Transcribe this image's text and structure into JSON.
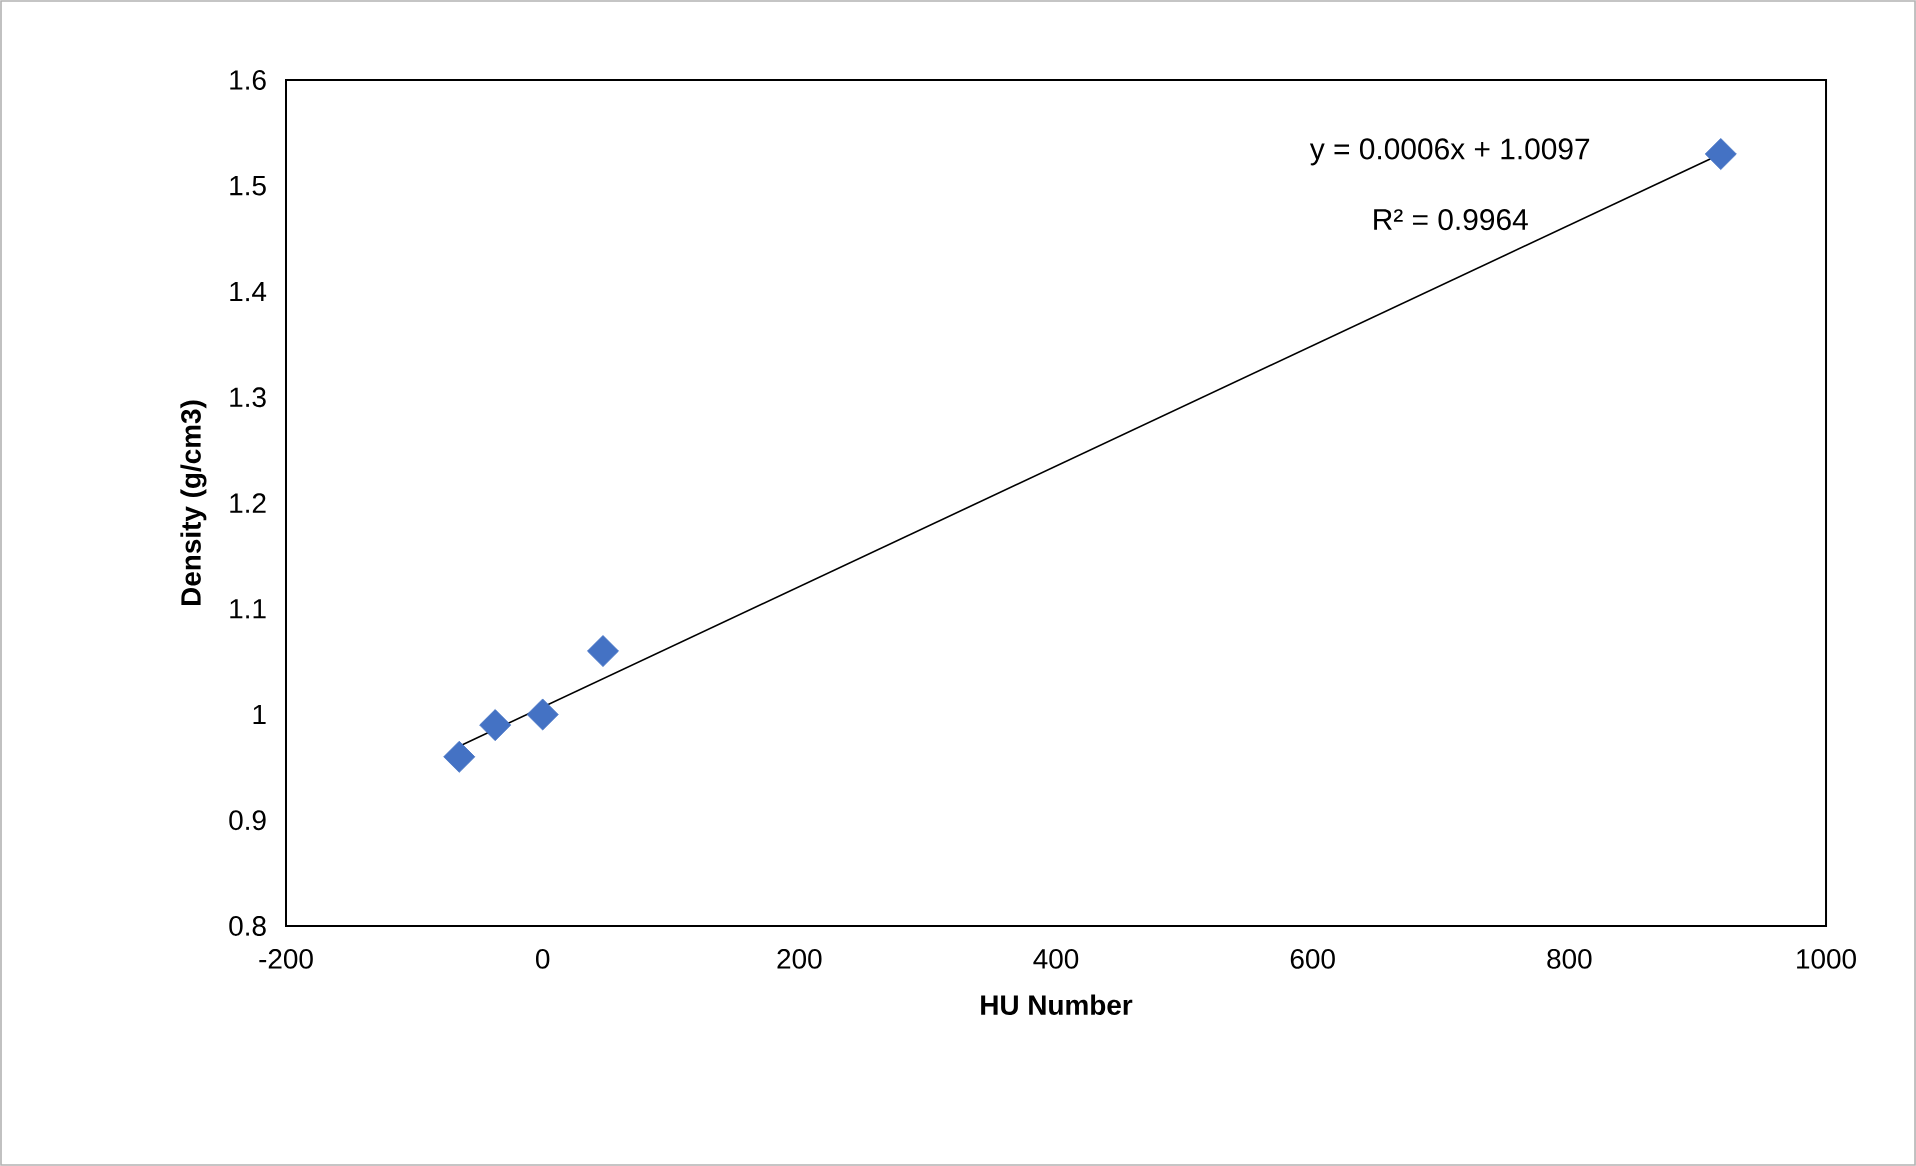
{
  "chart_data": {
    "type": "scatter",
    "xlabel": "HU Number",
    "ylabel": "Density (g/cm3)",
    "xlim": [
      -200,
      1000
    ],
    "xticks": [
      -200,
      0,
      200,
      400,
      600,
      800,
      1000
    ],
    "ylim": [
      0.8,
      1.6
    ],
    "yticks": [
      0.8,
      0.9,
      1,
      1.1,
      1.2,
      1.3,
      1.4,
      1.5,
      1.6
    ],
    "grid": false,
    "marker": "diamond",
    "series": [
      {
        "color": "#4472c4",
        "x": [
          -65,
          -37,
          0,
          47,
          918
        ],
        "values": [
          0.96,
          0.99,
          1.0,
          1.06,
          1.53
        ]
      },
      {
        "type": "line",
        "color": "#000000",
        "marker": "none",
        "line_style": "solid",
        "x": [
          -65,
          918
        ],
        "values": [
          0.97,
          1.53
        ]
      }
    ],
    "annotations": [
      "y = 0.0006x + 1.0097",
      "R² = 0.9964"
    ]
  }
}
